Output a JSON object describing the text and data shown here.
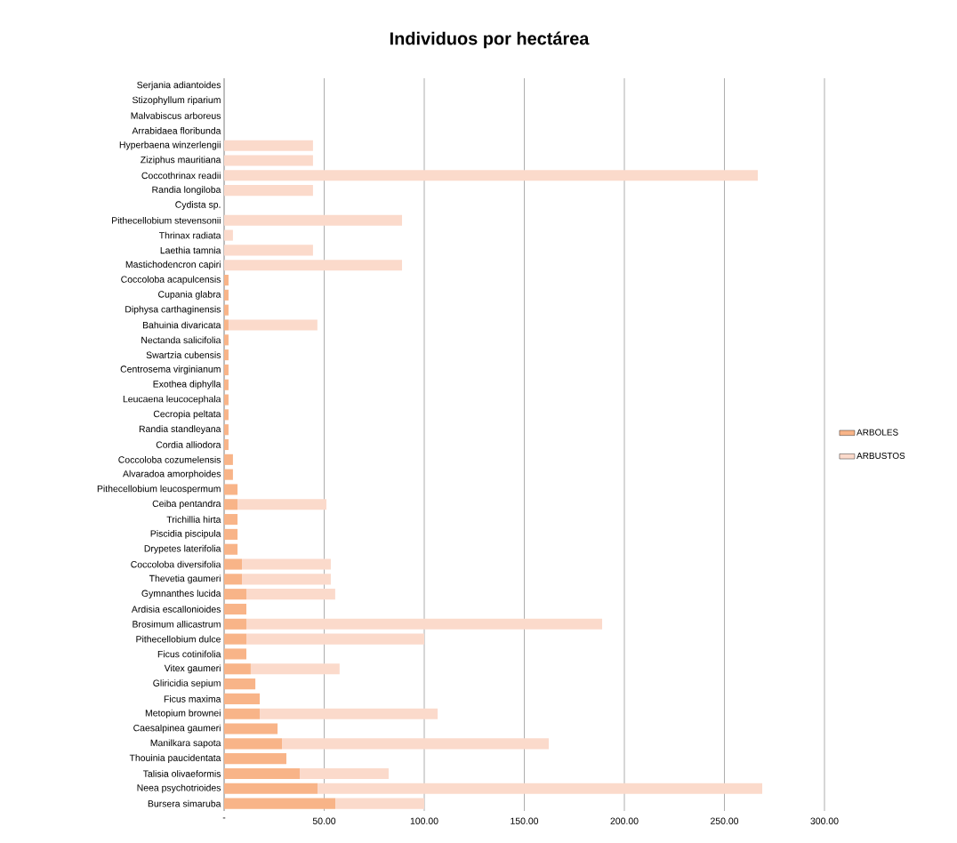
{
  "chart_data": {
    "type": "bar",
    "orientation": "horizontal",
    "stacked": true,
    "title": "Individuos por hectárea",
    "categories": [
      "Serjania adiantoides",
      "Stizophyllum riparium",
      "Malvabiscus arboreus",
      "Arrabidaea floribunda",
      "Hyperbaena winzerlengii",
      "Ziziphus mauritiana",
      "Coccothrinax readii",
      "Randia longiloba",
      "Cydista sp.",
      "Pithecellobium stevensonii",
      "Thrinax radiata",
      "Laethia tamnia",
      "Mastichodencron capiri",
      "Coccoloba acapulcensis",
      "Cupania glabra",
      "Diphysa carthaginensis",
      "Bahuinia divaricata",
      "Nectanda salicifolia",
      "Swartzia cubensis",
      "Centrosema virginianum",
      "Exothea diphylla",
      "Leucaena leucocephala",
      "Cecropia peltata",
      "Randia standleyana",
      "Cordia alliodora",
      "Coccoloba cozumelensis",
      "Alvaradoa amorphoides",
      "Pithecellobium leucospermum",
      "Ceiba pentandra",
      "Trichillia hirta",
      "Piscidia piscipula",
      "Drypetes laterifolia",
      "Coccoloba diversifolia",
      "Thevetia gaumeri",
      "Gymnanthes lucida",
      "Ardisia escallonioides",
      "Brosimum allicastrum",
      "Pithecellobium dulce",
      "Ficus cotinifolia",
      "Vitex gaumeri",
      "Gliricidia sepium",
      "Ficus maxima",
      "Metopium brownei",
      "Caesalpinea gaumeri",
      "Manilkara sapota",
      "Thouinia paucidentata",
      "Talisia olivaeformis",
      "Neea psychotrioides",
      "Bursera simaruba"
    ],
    "series": [
      {
        "name": "ARBOLES",
        "color": "#f8b488",
        "values": [
          null,
          null,
          null,
          null,
          null,
          null,
          null,
          null,
          null,
          null,
          null,
          null,
          null,
          2.2,
          2.2,
          2.2,
          2.2,
          2.2,
          2.2,
          2.2,
          2.2,
          2.2,
          2.2,
          2.2,
          2.2,
          4.4,
          4.4,
          6.7,
          6.7,
          6.7,
          6.7,
          6.7,
          8.9,
          8.9,
          11.1,
          11.1,
          11.1,
          11.1,
          11.1,
          13.3,
          15.6,
          17.8,
          17.8,
          26.7,
          28.9,
          31.1,
          37.8,
          46.7,
          55.6
        ]
      },
      {
        "name": "ARBUSTOS",
        "color": "#fbdacb",
        "values": [
          null,
          null,
          null,
          null,
          44.4,
          44.4,
          266.7,
          44.4,
          null,
          88.9,
          4.4,
          44.4,
          88.9,
          null,
          null,
          null,
          44.4,
          null,
          null,
          null,
          null,
          null,
          null,
          null,
          null,
          null,
          null,
          null,
          44.4,
          null,
          null,
          null,
          44.4,
          44.4,
          44.4,
          null,
          177.8,
          88.9,
          null,
          44.4,
          null,
          null,
          88.9,
          null,
          133.3,
          null,
          44.4,
          222.2,
          44.4
        ]
      }
    ],
    "xlim": [
      0,
      300
    ],
    "xticks": [
      {
        "value": 0,
        "label": "-"
      },
      {
        "value": 50,
        "label": "50.00"
      },
      {
        "value": 100,
        "label": "100.00"
      },
      {
        "value": 150,
        "label": "150.00"
      },
      {
        "value": 200,
        "label": "200.00"
      },
      {
        "value": 250,
        "label": "250.00"
      },
      {
        "value": 300,
        "label": "300.00"
      }
    ],
    "grid": "x",
    "legend": "right"
  }
}
